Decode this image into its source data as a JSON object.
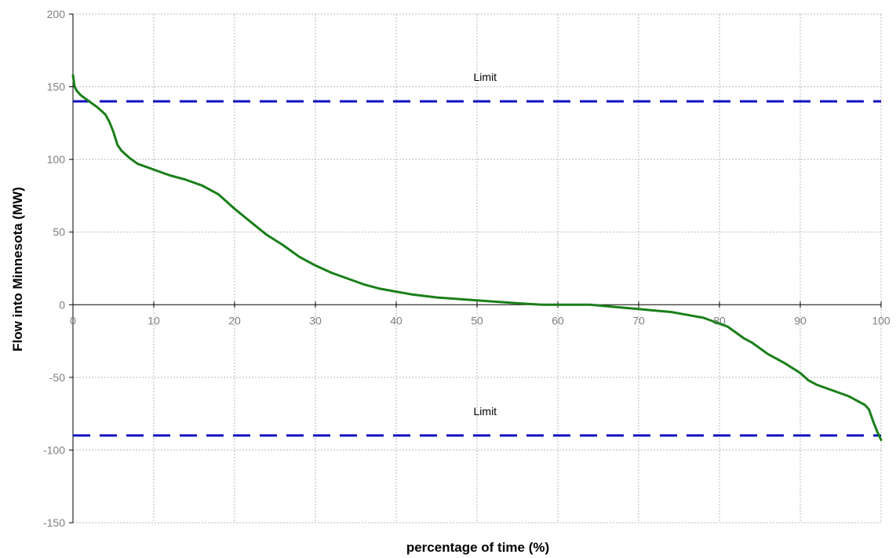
{
  "chart_data": {
    "type": "line",
    "title": "",
    "xlabel": "percentage of time (%)",
    "ylabel": "Flow into Minnesota (MW)",
    "xlim": [
      0,
      100
    ],
    "ylim": [
      -150,
      200
    ],
    "x_ticks": [
      0,
      10,
      20,
      30,
      40,
      50,
      60,
      70,
      80,
      90,
      100
    ],
    "y_ticks": [
      200,
      150,
      100,
      50,
      0,
      -50,
      -100,
      -150
    ],
    "x_tick_labels": [
      "0",
      "10",
      "20",
      "30",
      "40",
      "50",
      "60",
      "70",
      "80",
      "90",
      "100"
    ],
    "y_tick_labels": [
      "200",
      "150",
      "100",
      "50",
      "0",
      "-50",
      "-100",
      "-150"
    ],
    "grid": true,
    "legend": "none",
    "series": [
      {
        "color": "#1a7f1a",
        "x": [
          0,
          0.2,
          0.5,
          1,
          2,
          3,
          4,
          4.5,
          5,
          5.5,
          6,
          7,
          8,
          10,
          12,
          14,
          16,
          18,
          19,
          20,
          22,
          24,
          26,
          28,
          30,
          32,
          34,
          36,
          38,
          40,
          42,
          45,
          50,
          55,
          58,
          60,
          62,
          64,
          66,
          68,
          70,
          72,
          74,
          76,
          78,
          80,
          81,
          82,
          83,
          84,
          85,
          86,
          88,
          90,
          91,
          92,
          94,
          96,
          98,
          98.5,
          99,
          99.5,
          100
        ],
        "y": [
          158,
          150,
          147,
          144,
          140,
          136,
          131,
          126,
          119,
          110,
          106,
          101,
          97,
          93,
          89,
          86,
          82,
          76,
          71,
          66,
          57,
          48,
          41,
          33,
          27,
          22,
          18,
          14,
          11,
          9,
          7,
          5,
          3,
          1,
          0,
          0,
          0,
          0,
          -1,
          -2,
          -3,
          -4,
          -5,
          -7,
          -9,
          -13,
          -15,
          -19,
          -23,
          -26,
          -30,
          -34,
          -40,
          -47,
          -52,
          -55,
          -59,
          -63,
          -69,
          -72,
          -80,
          -87,
          -93
        ]
      }
    ],
    "reference_lines": [
      {
        "y": 140,
        "label": "Limit",
        "label_x": 51,
        "color": "#1010c0"
      },
      {
        "y": -90,
        "label": "Limit",
        "label_x": 51,
        "color": "#1010c0"
      }
    ]
  }
}
